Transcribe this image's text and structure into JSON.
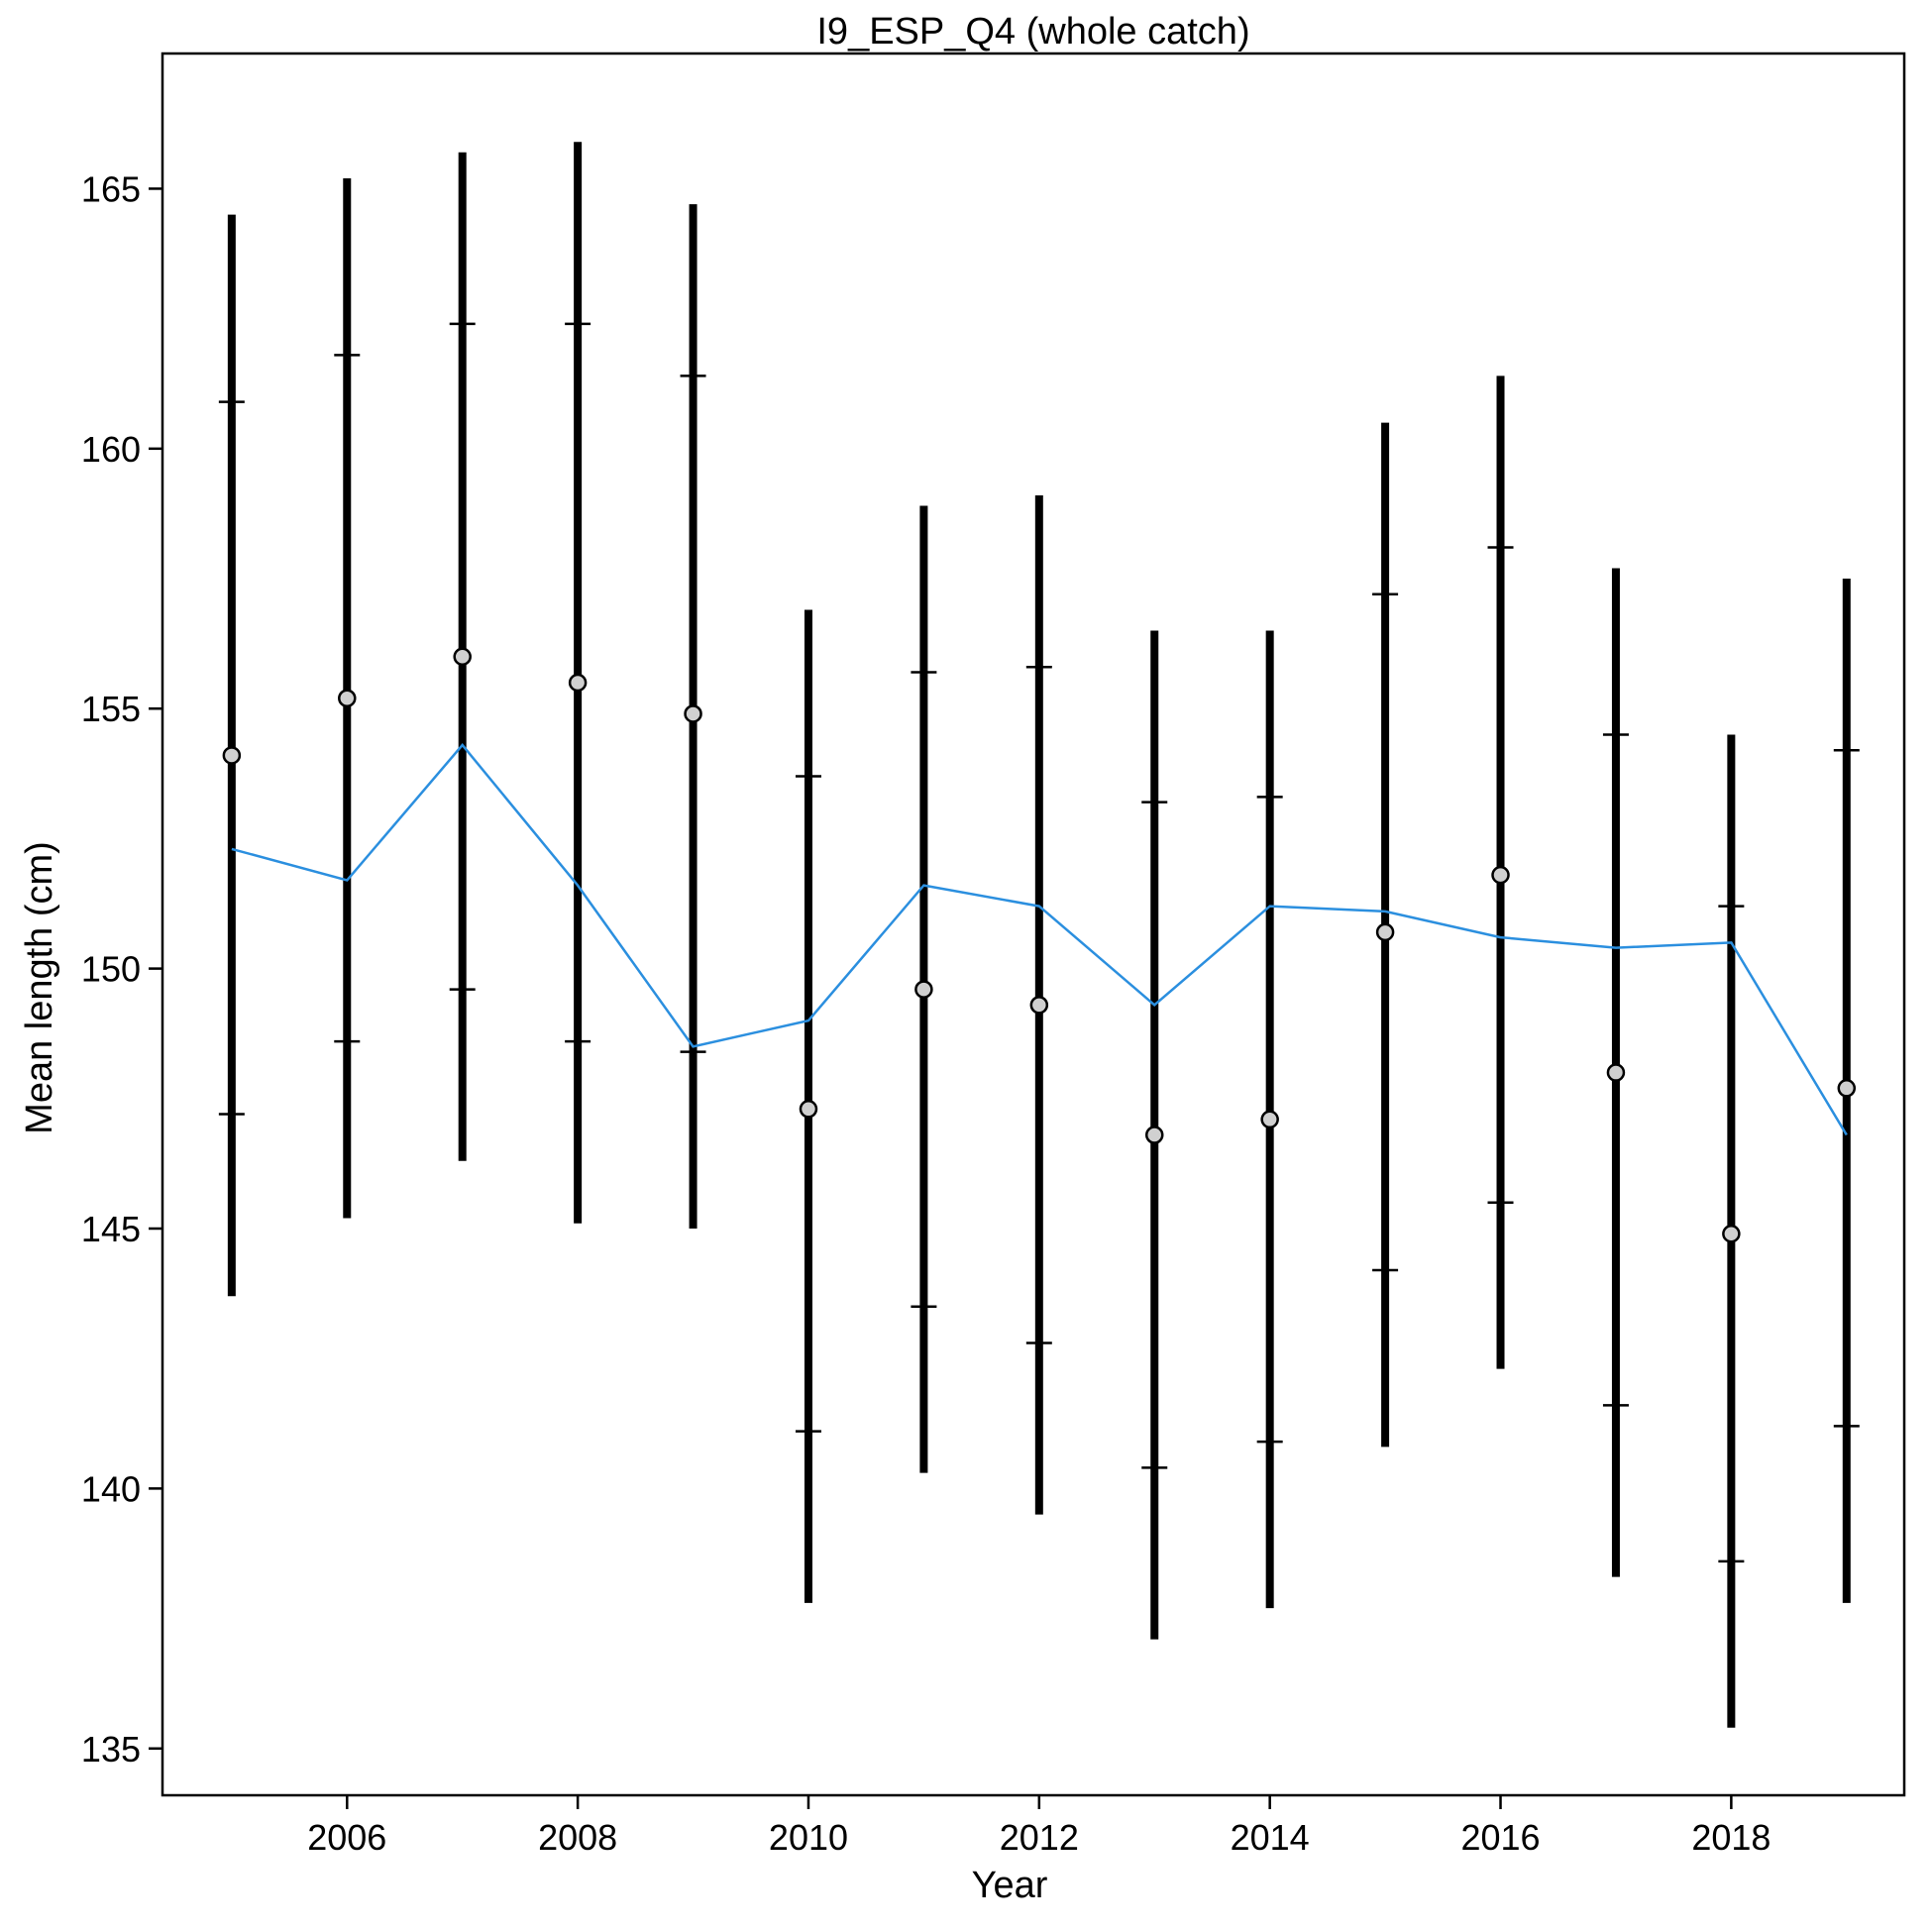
{
  "chart_data": {
    "type": "scatter",
    "title": "I9_ESP_Q4 (whole catch)",
    "xlabel": "Year",
    "ylabel": "Mean length (cm)",
    "xlim": [
      2004.4,
      2019.5
    ],
    "ylim": [
      134.1,
      167.6
    ],
    "x_ticks": [
      2006,
      2008,
      2010,
      2012,
      2014,
      2016,
      2018
    ],
    "x_tick_labels": [
      "2006",
      "2008",
      "2010",
      "2012",
      "2014",
      "2016",
      "2018"
    ],
    "y_ticks": [
      135,
      140,
      145,
      150,
      155,
      160,
      165
    ],
    "y_tick_labels": [
      "135",
      "140",
      "145",
      "150",
      "155",
      "160",
      "165"
    ],
    "grid": false,
    "series": [
      {
        "kind": "points-with-intervals",
        "color": "#d0d0d0",
        "x": [
          2005,
          2006,
          2007,
          2008,
          2009,
          2010,
          2011,
          2012,
          2013,
          2014,
          2015,
          2016,
          2017,
          2018,
          2019
        ],
        "mean": [
          154.1,
          155.2,
          156.0,
          155.5,
          154.9,
          147.3,
          149.6,
          149.3,
          146.8,
          147.1,
          150.7,
          151.8,
          148.0,
          144.9,
          147.7
        ],
        "outer_lower": [
          143.7,
          145.2,
          146.3,
          145.1,
          145.0,
          137.8,
          140.3,
          139.5,
          137.1,
          137.7,
          140.8,
          142.3,
          138.3,
          135.4,
          137.8
        ],
        "outer_upper": [
          164.5,
          165.2,
          165.7,
          165.9,
          164.7,
          156.9,
          158.9,
          159.1,
          156.5,
          156.5,
          160.5,
          161.4,
          157.7,
          154.5,
          157.5
        ],
        "inner_lower": [
          147.2,
          148.6,
          149.6,
          148.6,
          148.4,
          141.1,
          143.5,
          142.8,
          140.4,
          140.9,
          144.2,
          145.5,
          141.6,
          138.6,
          141.2
        ],
        "inner_upper": [
          160.9,
          161.8,
          162.4,
          162.4,
          161.4,
          153.7,
          155.7,
          155.8,
          153.2,
          153.3,
          157.2,
          158.1,
          154.5,
          151.2,
          154.2
        ]
      },
      {
        "kind": "line",
        "color": "#2b8fdf",
        "x": [
          2005,
          2006,
          2007,
          2008,
          2009,
          2010,
          2011,
          2012,
          2013,
          2014,
          2015,
          2016,
          2017,
          2018,
          2019
        ],
        "values": [
          152.3,
          151.7,
          154.3,
          151.6,
          148.5,
          149.0,
          151.6,
          151.2,
          149.3,
          151.2,
          151.1,
          150.6,
          150.4,
          150.5,
          146.8
        ]
      }
    ]
  }
}
